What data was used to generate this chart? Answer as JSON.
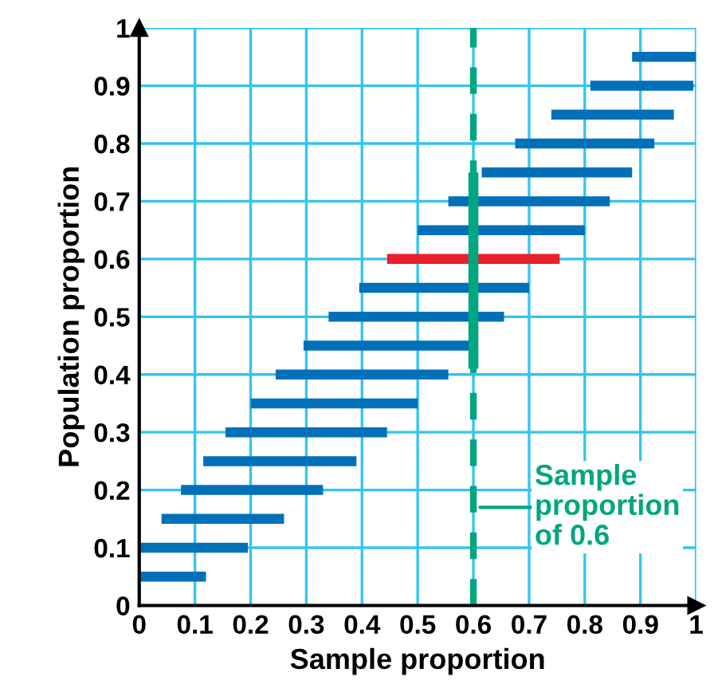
{
  "chart_data": {
    "type": "line",
    "xlabel": "Sample proportion",
    "ylabel": "Population proportion",
    "xlim": [
      0,
      1
    ],
    "ylim": [
      0,
      1
    ],
    "xticks": [
      0,
      0.1,
      0.2,
      0.3,
      0.4,
      0.5,
      0.6,
      0.7,
      0.8,
      0.9,
      1
    ],
    "yticks": [
      0,
      0.1,
      0.2,
      0.3,
      0.4,
      0.5,
      0.6,
      0.7,
      0.8,
      0.9,
      1
    ],
    "grid": true,
    "series": [
      {
        "color": "#0070b8",
        "x": [
          0,
          0.12
        ],
        "values": [
          0.05,
          0.05
        ]
      },
      {
        "color": "#0070b8",
        "x": [
          0,
          0.195
        ],
        "values": [
          0.1,
          0.1
        ]
      },
      {
        "color": "#0070b8",
        "x": [
          0.04,
          0.26
        ],
        "values": [
          0.15,
          0.15
        ]
      },
      {
        "color": "#0070b8",
        "x": [
          0.075,
          0.33
        ],
        "values": [
          0.2,
          0.2
        ]
      },
      {
        "color": "#0070b8",
        "x": [
          0.115,
          0.39
        ],
        "values": [
          0.25,
          0.25
        ]
      },
      {
        "color": "#0070b8",
        "x": [
          0.155,
          0.445
        ],
        "values": [
          0.3,
          0.3
        ]
      },
      {
        "color": "#0070b8",
        "x": [
          0.2,
          0.5
        ],
        "values": [
          0.35,
          0.35
        ]
      },
      {
        "color": "#0070b8",
        "x": [
          0.245,
          0.555
        ],
        "values": [
          0.4,
          0.4
        ]
      },
      {
        "color": "#0070b8",
        "x": [
          0.295,
          0.6
        ],
        "values": [
          0.45,
          0.45
        ]
      },
      {
        "color": "#0070b8",
        "x": [
          0.34,
          0.655
        ],
        "values": [
          0.5,
          0.5
        ]
      },
      {
        "color": "#0070b8",
        "x": [
          0.395,
          0.7
        ],
        "values": [
          0.55,
          0.55
        ]
      },
      {
        "color": "#e8202a",
        "x": [
          0.445,
          0.755
        ],
        "values": [
          0.6,
          0.6
        ]
      },
      {
        "color": "#0070b8",
        "x": [
          0.5,
          0.8
        ],
        "values": [
          0.65,
          0.65
        ]
      },
      {
        "color": "#0070b8",
        "x": [
          0.555,
          0.845
        ],
        "values": [
          0.7,
          0.7
        ]
      },
      {
        "color": "#0070b8",
        "x": [
          0.615,
          0.885
        ],
        "values": [
          0.75,
          0.75
        ]
      },
      {
        "color": "#0070b8",
        "x": [
          0.675,
          0.925
        ],
        "values": [
          0.8,
          0.8
        ]
      },
      {
        "color": "#0070b8",
        "x": [
          0.74,
          0.96
        ],
        "values": [
          0.85,
          0.85
        ]
      },
      {
        "color": "#0070b8",
        "x": [
          0.81,
          0.995
        ],
        "values": [
          0.9,
          0.9
        ]
      },
      {
        "color": "#0070b8",
        "x": [
          0.885,
          1
        ],
        "values": [
          0.95,
          0.95
        ]
      },
      {
        "color": "#00a67e",
        "x": [
          0.6,
          0.6
        ],
        "values": [
          0.41,
          0.75
        ]
      }
    ],
    "ref_lines": [
      {
        "axis": "x",
        "value": 0.6,
        "label": "Sample\nproportion\nof 0.6",
        "color": "#00a67e",
        "line_style": "dashed"
      }
    ]
  }
}
